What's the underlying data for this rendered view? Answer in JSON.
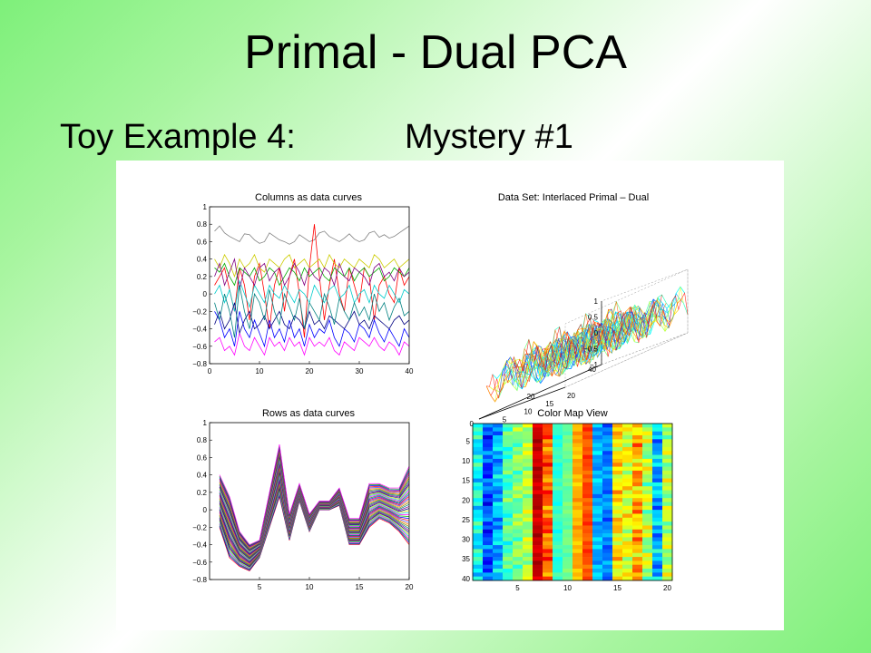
{
  "slide": {
    "title": "Primal - Dual PCA",
    "subtitle_left": "Toy Example 4:",
    "subtitle_right": "Mystery #1"
  },
  "chart_data": [
    {
      "type": "line",
      "title": "Columns as data curves",
      "xlim": [
        0,
        40
      ],
      "ylim": [
        -0.8,
        1
      ],
      "xticks": [
        0,
        10,
        20,
        30,
        40
      ],
      "yticks": [
        -0.8,
        -0.6,
        -0.4,
        -0.2,
        0,
        0.2,
        0.4,
        0.6,
        0.8,
        1
      ],
      "series_count": 20,
      "x": [
        1,
        2,
        3,
        4,
        5,
        6,
        7,
        8,
        9,
        10,
        11,
        12,
        13,
        14,
        15,
        16,
        17,
        18,
        19,
        20,
        21,
        22,
        23,
        24,
        25,
        26,
        27,
        28,
        29,
        30,
        31,
        32,
        33,
        34,
        35,
        36,
        37,
        38,
        39,
        40
      ],
      "series": [
        {
          "values": [
            0.72,
            0.78,
            0.7,
            0.66,
            0.63,
            0.6,
            0.69,
            0.68,
            0.62,
            0.58,
            0.6,
            0.7,
            0.66,
            0.62,
            0.6,
            0.57,
            0.6,
            0.68,
            0.64,
            0.6,
            0.62,
            0.7,
            0.72,
            0.66,
            0.63,
            0.6,
            0.64,
            0.69,
            0.63,
            0.6,
            0.62,
            0.7,
            0.72,
            0.65,
            0.68,
            0.64,
            0.66,
            0.7,
            0.74,
            0.78
          ]
        },
        {
          "values": [
            0.1,
            0.2,
            0.3,
            0.05,
            -0.2,
            0.3,
            0.1,
            -0.3,
            0.2,
            0.35,
            0.0,
            -0.4,
            0.1,
            0.3,
            -0.2,
            0.2,
            0.4,
            0.0,
            -0.5,
            0.3,
            0.8,
            0.2,
            -0.3,
            0.1,
            0.4,
            0.0,
            -0.2,
            0.3,
            0.1,
            -0.1,
            0.3,
            0.2,
            -0.3,
            0.1,
            0.2,
            0.0,
            -0.1,
            0.3,
            0.1,
            0.2
          ]
        },
        {
          "values": [
            -0.2,
            -0.3,
            -0.5,
            -0.4,
            -0.6,
            -0.2,
            -0.4,
            -0.5,
            -0.3,
            -0.45,
            -0.6,
            -0.3,
            -0.5,
            -0.4,
            -0.55,
            -0.3,
            -0.5,
            -0.4,
            -0.6,
            -0.35,
            -0.5,
            -0.4,
            -0.45,
            -0.3,
            -0.5,
            -0.6,
            -0.4,
            -0.45,
            -0.55,
            -0.35,
            -0.4,
            -0.5,
            -0.3,
            -0.45,
            -0.55,
            -0.4,
            -0.5,
            -0.6,
            -0.4,
            -0.5
          ]
        },
        {
          "values": [
            0.3,
            0.25,
            0.35,
            0.2,
            0.1,
            0.3,
            0.25,
            0.2,
            0.3,
            0.15,
            0.2,
            0.3,
            0.25,
            0.1,
            0.2,
            0.3,
            0.25,
            0.15,
            0.3,
            0.2,
            0.25,
            0.3,
            0.2,
            0.15,
            0.3,
            0.25,
            0.2,
            0.3,
            0.15,
            0.25,
            0.3,
            0.2,
            0.25,
            0.3,
            0.15,
            0.2,
            0.3,
            0.25,
            0.2,
            0.3
          ]
        },
        {
          "values": [
            -0.55,
            -0.5,
            -0.65,
            -0.6,
            -0.7,
            -0.45,
            -0.6,
            -0.65,
            -0.5,
            -0.6,
            -0.7,
            -0.5,
            -0.6,
            -0.55,
            -0.65,
            -0.5,
            -0.6,
            -0.55,
            -0.7,
            -0.5,
            -0.6,
            -0.55,
            -0.6,
            -0.5,
            -0.65,
            -0.7,
            -0.55,
            -0.6,
            -0.65,
            -0.5,
            -0.55,
            -0.6,
            -0.5,
            -0.6,
            -0.65,
            -0.55,
            -0.6,
            -0.7,
            -0.55,
            -0.6
          ]
        },
        {
          "values": [
            0.0,
            0.1,
            -0.1,
            0.05,
            -0.2,
            0.15,
            0.0,
            -0.15,
            0.1,
            0.0,
            -0.1,
            0.1,
            0.0,
            -0.05,
            0.1,
            0.0,
            -0.1,
            0.05,
            0.0,
            -0.1,
            0.1,
            0.0,
            -0.1,
            0.05,
            0.1,
            -0.05,
            0.0,
            0.1,
            -0.1,
            0.0,
            0.05,
            -0.1,
            0.1,
            0.0,
            -0.05,
            0.1,
            0.0,
            -0.1,
            0.05,
            0.0
          ]
        },
        {
          "values": [
            0.4,
            0.3,
            0.45,
            0.35,
            0.2,
            0.4,
            0.3,
            0.35,
            0.45,
            0.3,
            0.25,
            0.4,
            0.35,
            0.3,
            0.4,
            0.45,
            0.3,
            0.35,
            0.4,
            0.3,
            0.35,
            0.4,
            0.3,
            0.45,
            0.35,
            0.3,
            0.4,
            0.35,
            0.3,
            0.4,
            0.35,
            0.3,
            0.45,
            0.4,
            0.3,
            0.35,
            0.4,
            0.3,
            0.35,
            0.4
          ]
        },
        {
          "values": [
            -0.35,
            -0.2,
            -0.4,
            -0.3,
            -0.1,
            -0.45,
            -0.3,
            -0.2,
            -0.4,
            -0.35,
            -0.25,
            -0.4,
            -0.3,
            -0.2,
            -0.35,
            -0.4,
            -0.25,
            -0.3,
            -0.4,
            -0.2,
            -0.35,
            -0.3,
            -0.4,
            -0.25,
            -0.3,
            -0.35,
            -0.4,
            -0.3,
            -0.2,
            -0.35,
            -0.3,
            -0.4,
            -0.25,
            -0.3,
            -0.35,
            -0.4,
            -0.3,
            -0.25,
            -0.35,
            -0.3
          ]
        },
        {
          "values": [
            0.2,
            0.35,
            0.1,
            0.25,
            0.4,
            0.05,
            0.3,
            0.2,
            0.1,
            0.3,
            0.35,
            0.15,
            0.25,
            0.3,
            0.1,
            0.2,
            0.35,
            0.25,
            0.1,
            0.3,
            0.2,
            0.15,
            0.3,
            0.25,
            0.1,
            0.35,
            0.2,
            0.15,
            0.3,
            0.25,
            0.2,
            0.1,
            0.3,
            0.35,
            0.2,
            0.25,
            0.15,
            0.3,
            0.2,
            0.25
          ]
        },
        {
          "values": [
            -0.1,
            -0.3,
            0.0,
            -0.2,
            -0.5,
            0.1,
            -0.2,
            -0.4,
            0.0,
            -0.1,
            -0.3,
            0.05,
            -0.2,
            -0.35,
            0.0,
            -0.15,
            -0.3,
            -0.05,
            -0.4,
            -0.1,
            -0.2,
            -0.3,
            0.0,
            -0.15,
            -0.35,
            -0.05,
            -0.2,
            -0.3,
            -0.1,
            -0.25,
            -0.15,
            -0.3,
            0.0,
            -0.2,
            -0.1,
            -0.3,
            -0.15,
            -0.05,
            -0.25,
            -0.2
          ]
        }
      ]
    },
    {
      "type": "surface",
      "title": "Data Set: Interlaced Primal – Dual",
      "zlim": [
        -1,
        1
      ],
      "zticks": [
        -1,
        -0.5,
        0,
        0.5,
        1
      ],
      "zticklabels": [
        "−1",
        "−0.5",
        "0",
        "0.5",
        "1"
      ],
      "xticks": [
        0,
        5,
        10,
        15,
        20
      ],
      "yticks": [
        0,
        20,
        40
      ]
    },
    {
      "type": "line",
      "title": "Rows as data curves",
      "xlim": [
        0,
        20
      ],
      "ylim": [
        -0.8,
        1
      ],
      "xticks": [
        5,
        10,
        15,
        20
      ],
      "yticks": [
        -0.8,
        -0.6,
        -0.4,
        -0.2,
        0,
        0.2,
        0.4,
        0.6,
        0.8,
        1
      ],
      "x": [
        1,
        2,
        3,
        4,
        5,
        6,
        7,
        8,
        9,
        10,
        11,
        12,
        13,
        14,
        15,
        16,
        17,
        18,
        19,
        20
      ],
      "series_count": 40,
      "base_profile": [
        0.1,
        -0.2,
        -0.45,
        -0.55,
        -0.45,
        0.0,
        0.45,
        -0.2,
        0.2,
        -0.15,
        0.05,
        0.05,
        0.15,
        -0.25,
        -0.25,
        0.05,
        0.1,
        0.05,
        0.0,
        0.05
      ],
      "spread_profile": [
        0.3,
        0.35,
        0.2,
        0.15,
        0.1,
        0.2,
        0.3,
        0.15,
        0.1,
        0.1,
        0.05,
        0.05,
        0.1,
        0.15,
        0.15,
        0.25,
        0.2,
        0.2,
        0.25,
        0.45
      ]
    },
    {
      "type": "heatmap",
      "title": "Color Map View",
      "rows": 40,
      "cols": 20,
      "xticks": [
        5,
        10,
        15,
        20
      ],
      "yticks": [
        5,
        10,
        15,
        20,
        25,
        30,
        35,
        40
      ],
      "column_levels": [
        0.38,
        0.2,
        0.3,
        0.45,
        0.5,
        0.55,
        0.93,
        0.78,
        0.42,
        0.48,
        0.7,
        0.8,
        0.3,
        0.25,
        0.65,
        0.6,
        0.7,
        0.55,
        0.3,
        0.55
      ],
      "column_variation": [
        0.12,
        0.12,
        0.12,
        0.1,
        0.1,
        0.1,
        0.05,
        0.12,
        0.05,
        0.04,
        0.05,
        0.05,
        0.08,
        0.08,
        0.12,
        0.12,
        0.14,
        0.14,
        0.14,
        0.12
      ]
    }
  ]
}
